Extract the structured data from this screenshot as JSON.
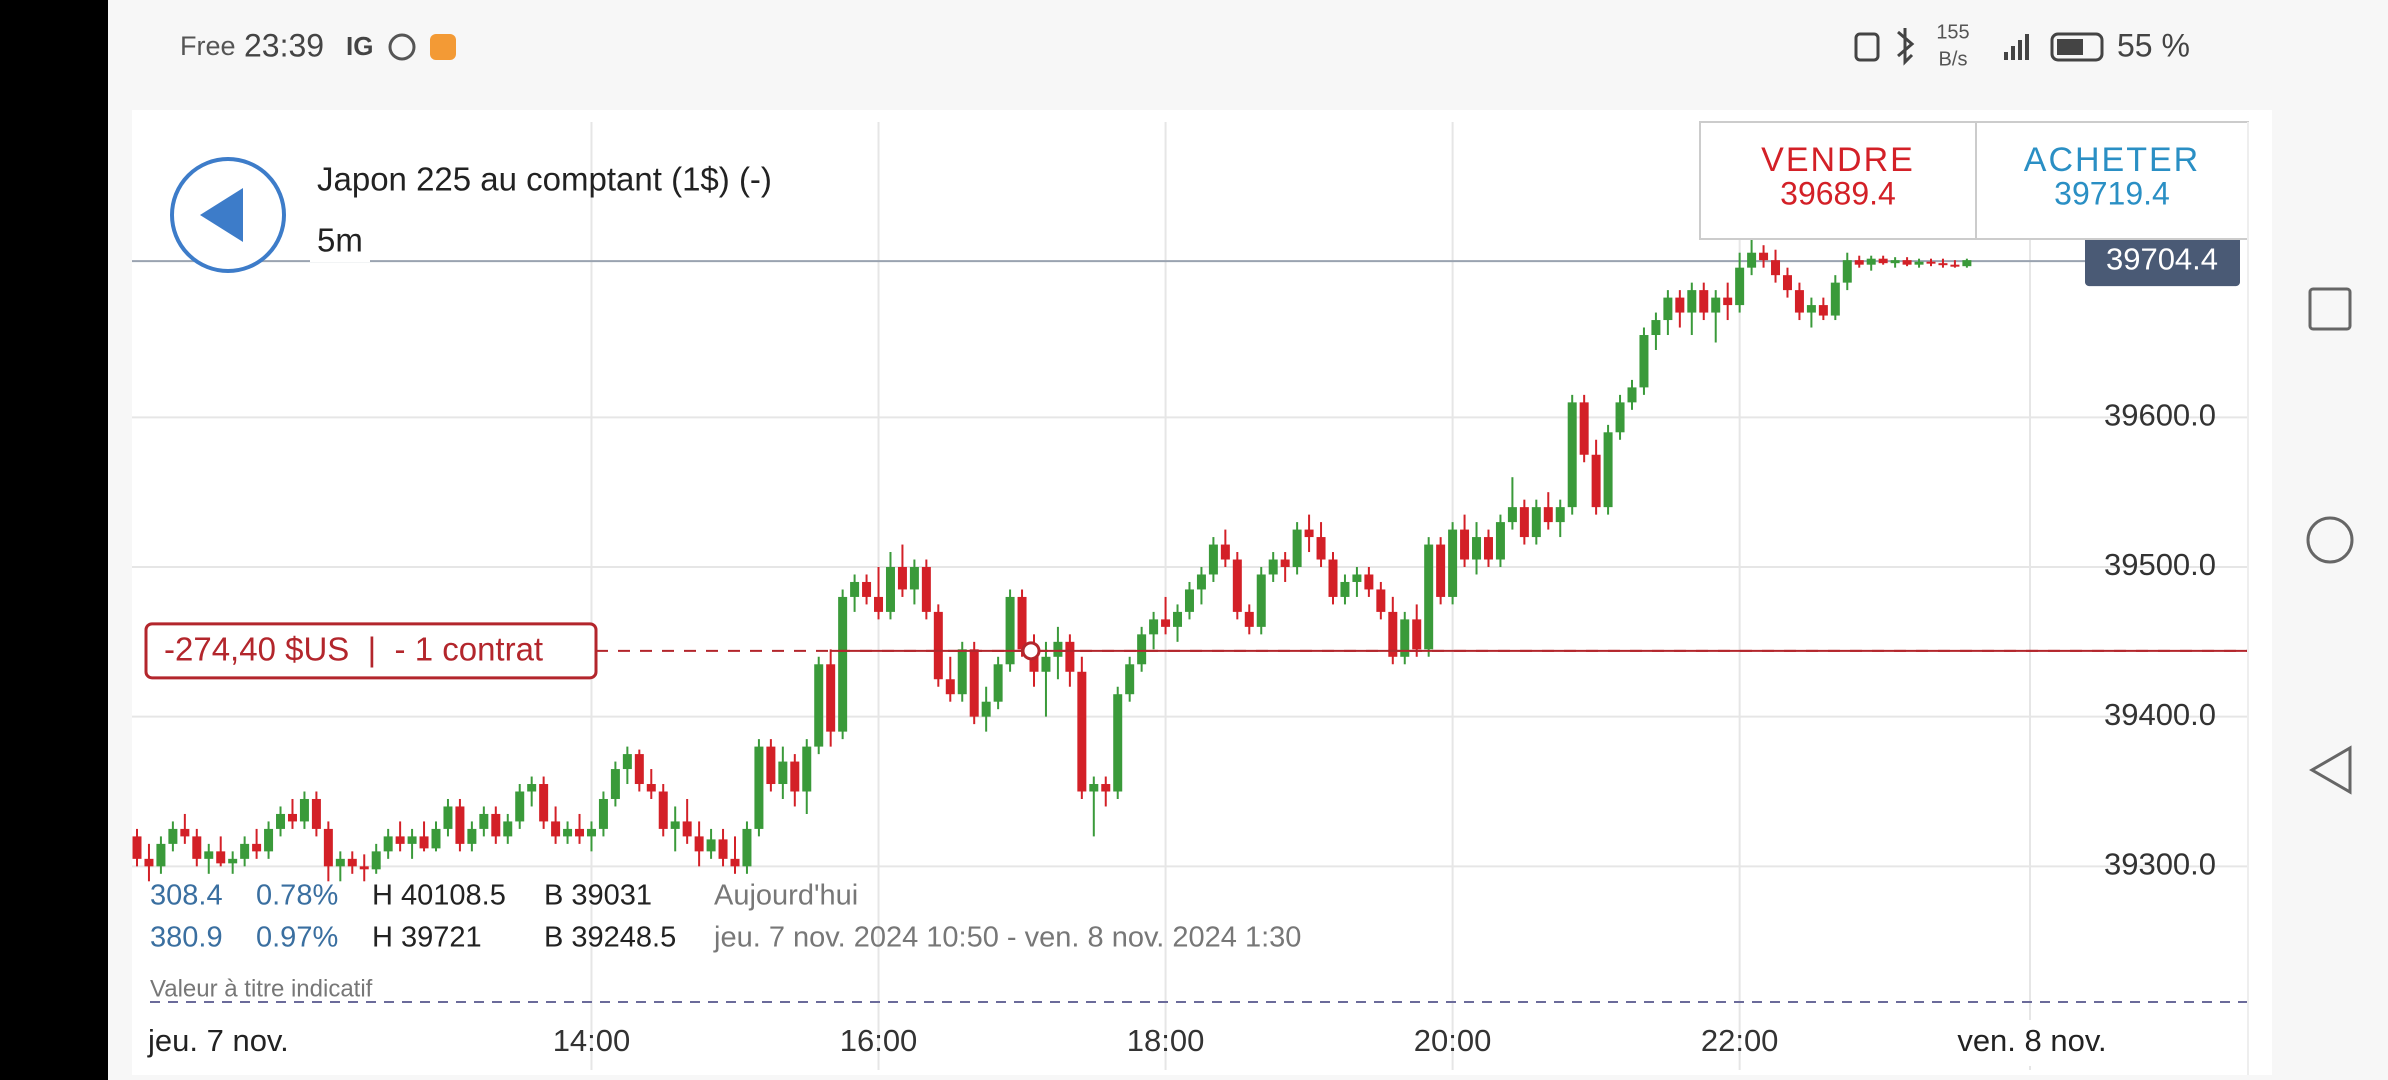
{
  "status_bar": {
    "carrier": "Free",
    "time": "23:39",
    "app": "IG",
    "speed": "155",
    "speed_unit": "B/s",
    "battery": "55 %"
  },
  "header": {
    "title": "Japon 225 au comptant (1$) (-)",
    "interval": "5m"
  },
  "quotes": {
    "sell_label": "VENDRE",
    "sell": 39689.4,
    "buy_label": "ACHETER",
    "buy": 39719.4
  },
  "position": {
    "label": "-274,40 $US  |  - 1 contrat"
  },
  "info": {
    "rows": [
      [
        "308.4",
        "0.78%",
        "H 40108.5",
        "B 39031",
        "Aujourd'hui"
      ],
      [
        "380.9",
        "0.97%",
        "H 39721",
        "B 39248.5",
        "jeu. 7 nov. 2024 10:50 - ven. 8 nov. 2024 1:30"
      ]
    ],
    "note": "Valeur à titre indicatif"
  },
  "chart_data": {
    "type": "candlestick",
    "up_color": "#3a9a3a",
    "down_color": "#d32027",
    "ylim": [
      39200,
      39800
    ],
    "yticks": [
      {
        "value": 39300,
        "label": "39300.0"
      },
      {
        "value": 39400,
        "label": "39400.0"
      },
      {
        "value": 39500,
        "label": "39500.0"
      },
      {
        "value": 39600,
        "label": "39600.0"
      }
    ],
    "xticks": [
      {
        "value": 38,
        "label": "14:00"
      },
      {
        "value": 62,
        "label": "16:00"
      },
      {
        "value": 86,
        "label": "18:00"
      },
      {
        "value": 110,
        "label": "20:00"
      },
      {
        "value": 134,
        "label": "22:00"
      }
    ],
    "start_label": "jeu. 7 nov.",
    "end_label": "ven. 8 nov.",
    "current_price": 39704.4,
    "position_price": 39444,
    "candles": [
      [
        39320,
        39325,
        39300,
        39305
      ],
      [
        39305,
        39315,
        39290,
        39300
      ],
      [
        39300,
        39320,
        39295,
        39315
      ],
      [
        39315,
        39330,
        39310,
        39325
      ],
      [
        39325,
        39335,
        39315,
        39320
      ],
      [
        39320,
        39325,
        39300,
        39305
      ],
      [
        39305,
        39315,
        39295,
        39310
      ],
      [
        39310,
        39320,
        39300,
        39302
      ],
      [
        39302,
        39310,
        39295,
        39305
      ],
      [
        39305,
        39320,
        39300,
        39315
      ],
      [
        39315,
        39325,
        39305,
        39310
      ],
      [
        39310,
        39330,
        39305,
        39325
      ],
      [
        39325,
        39340,
        39320,
        39335
      ],
      [
        39335,
        39345,
        39325,
        39330
      ],
      [
        39330,
        39350,
        39325,
        39345
      ],
      [
        39345,
        39350,
        39320,
        39325
      ],
      [
        39325,
        39330,
        39290,
        39300
      ],
      [
        39300,
        39310,
        39290,
        39305
      ],
      [
        39305,
        39310,
        39295,
        39300
      ],
      [
        39300,
        39308,
        39290,
        39298
      ],
      [
        39298,
        39315,
        39295,
        39310
      ],
      [
        39310,
        39325,
        39305,
        39320
      ],
      [
        39320,
        39330,
        39310,
        39315
      ],
      [
        39315,
        39325,
        39305,
        39320
      ],
      [
        39320,
        39330,
        39310,
        39312
      ],
      [
        39312,
        39330,
        39310,
        39325
      ],
      [
        39325,
        39345,
        39320,
        39340
      ],
      [
        39340,
        39345,
        39310,
        39315
      ],
      [
        39315,
        39330,
        39310,
        39325
      ],
      [
        39325,
        39340,
        39320,
        39335
      ],
      [
        39335,
        39340,
        39315,
        39320
      ],
      [
        39320,
        39335,
        39315,
        39330
      ],
      [
        39330,
        39355,
        39325,
        39350
      ],
      [
        39350,
        39360,
        39340,
        39355
      ],
      [
        39355,
        39360,
        39325,
        39330
      ],
      [
        39330,
        39340,
        39315,
        39320
      ],
      [
        39320,
        39330,
        39315,
        39325
      ],
      [
        39325,
        39335,
        39315,
        39320
      ],
      [
        39320,
        39330,
        39310,
        39325
      ],
      [
        39325,
        39350,
        39320,
        39345
      ],
      [
        39345,
        39370,
        39340,
        39365
      ],
      [
        39365,
        39380,
        39355,
        39375
      ],
      [
        39375,
        39378,
        39350,
        39355
      ],
      [
        39355,
        39365,
        39345,
        39350
      ],
      [
        39350,
        39355,
        39320,
        39325
      ],
      [
        39325,
        39340,
        39310,
        39330
      ],
      [
        39330,
        39345,
        39315,
        39320
      ],
      [
        39320,
        39330,
        39300,
        39310
      ],
      [
        39310,
        39325,
        39305,
        39318
      ],
      [
        39318,
        39325,
        39300,
        39305
      ],
      [
        39305,
        39320,
        39295,
        39300
      ],
      [
        39300,
        39330,
        39295,
        39325
      ],
      [
        39325,
        39385,
        39320,
        39380
      ],
      [
        39380,
        39385,
        39350,
        39355
      ],
      [
        39355,
        39380,
        39345,
        39370
      ],
      [
        39370,
        39375,
        39340,
        39350
      ],
      [
        39350,
        39385,
        39335,
        39380
      ],
      [
        39380,
        39440,
        39375,
        39435
      ],
      [
        39435,
        39445,
        39380,
        39390
      ],
      [
        39390,
        39485,
        39385,
        39480
      ],
      [
        39480,
        39495,
        39470,
        39490
      ],
      [
        39490,
        39495,
        39475,
        39480
      ],
      [
        39480,
        39500,
        39465,
        39470
      ],
      [
        39470,
        39510,
        39465,
        39500
      ],
      [
        39500,
        39515,
        39480,
        39485
      ],
      [
        39485,
        39505,
        39475,
        39500
      ],
      [
        39500,
        39505,
        39465,
        39470
      ],
      [
        39470,
        39475,
        39420,
        39425
      ],
      [
        39425,
        39440,
        39410,
        39415
      ],
      [
        39415,
        39450,
        39410,
        39445
      ],
      [
        39445,
        39450,
        39395,
        39400
      ],
      [
        39400,
        39420,
        39390,
        39410
      ],
      [
        39410,
        39440,
        39405,
        39435
      ],
      [
        39435,
        39485,
        39430,
        39480
      ],
      [
        39480,
        39485,
        39440,
        39445
      ],
      [
        39445,
        39455,
        39420,
        39430
      ],
      [
        39430,
        39450,
        39400,
        39440
      ],
      [
        39440,
        39460,
        39425,
        39450
      ],
      [
        39450,
        39455,
        39420,
        39430
      ],
      [
        39430,
        39440,
        39345,
        39350
      ],
      [
        39350,
        39360,
        39320,
        39355
      ],
      [
        39355,
        39360,
        39340,
        39350
      ],
      [
        39350,
        39420,
        39345,
        39415
      ],
      [
        39415,
        39440,
        39410,
        39435
      ],
      [
        39435,
        39460,
        39430,
        39455
      ],
      [
        39455,
        39470,
        39445,
        39465
      ],
      [
        39465,
        39480,
        39455,
        39460
      ],
      [
        39460,
        39475,
        39450,
        39470
      ],
      [
        39470,
        39490,
        39465,
        39485
      ],
      [
        39485,
        39500,
        39475,
        39495
      ],
      [
        39495,
        39520,
        39490,
        39515
      ],
      [
        39515,
        39525,
        39500,
        39505
      ],
      [
        39505,
        39510,
        39465,
        39470
      ],
      [
        39470,
        39475,
        39455,
        39460
      ],
      [
        39460,
        39500,
        39455,
        39495
      ],
      [
        39495,
        39510,
        39490,
        39505
      ],
      [
        39505,
        39510,
        39490,
        39500
      ],
      [
        39500,
        39530,
        39495,
        39525
      ],
      [
        39525,
        39535,
        39510,
        39520
      ],
      [
        39520,
        39530,
        39500,
        39505
      ],
      [
        39505,
        39510,
        39475,
        39480
      ],
      [
        39480,
        39495,
        39475,
        39490
      ],
      [
        39490,
        39500,
        39480,
        39495
      ],
      [
        39495,
        39500,
        39480,
        39485
      ],
      [
        39485,
        39490,
        39465,
        39470
      ],
      [
        39470,
        39480,
        39435,
        39440
      ],
      [
        39440,
        39470,
        39435,
        39465
      ],
      [
        39465,
        39475,
        39440,
        39445
      ],
      [
        39445,
        39520,
        39440,
        39515
      ],
      [
        39515,
        39520,
        39475,
        39480
      ],
      [
        39480,
        39530,
        39475,
        39525
      ],
      [
        39525,
        39535,
        39500,
        39505
      ],
      [
        39505,
        39530,
        39495,
        39520
      ],
      [
        39520,
        39525,
        39500,
        39505
      ],
      [
        39505,
        39535,
        39500,
        39530
      ],
      [
        39530,
        39560,
        39525,
        39540
      ],
      [
        39540,
        39545,
        39515,
        39520
      ],
      [
        39520,
        39545,
        39515,
        39540
      ],
      [
        39540,
        39550,
        39525,
        39530
      ],
      [
        39530,
        39545,
        39520,
        39540
      ],
      [
        39540,
        39615,
        39535,
        39610
      ],
      [
        39610,
        39615,
        39570,
        39575
      ],
      [
        39575,
        39585,
        39535,
        39540
      ],
      [
        39540,
        39595,
        39535,
        39590
      ],
      [
        39590,
        39615,
        39585,
        39610
      ],
      [
        39610,
        39625,
        39605,
        39620
      ],
      [
        39620,
        39660,
        39615,
        39655
      ],
      [
        39655,
        39670,
        39645,
        39665
      ],
      [
        39665,
        39685,
        39655,
        39680
      ],
      [
        39680,
        39685,
        39660,
        39670
      ],
      [
        39670,
        39690,
        39655,
        39685
      ],
      [
        39685,
        39690,
        39665,
        39670
      ],
      [
        39670,
        39685,
        39650,
        39680
      ],
      [
        39680,
        39690,
        39665,
        39675
      ],
      [
        39675,
        39710,
        39670,
        39700
      ],
      [
        39700,
        39720,
        39695,
        39710
      ],
      [
        39710,
        39715,
        39700,
        39705
      ],
      [
        39705,
        39712,
        39690,
        39695
      ],
      [
        39695,
        39700,
        39680,
        39685
      ],
      [
        39685,
        39690,
        39665,
        39670
      ],
      [
        39670,
        39680,
        39660,
        39675
      ],
      [
        39675,
        39680,
        39665,
        39668
      ],
      [
        39668,
        39695,
        39665,
        39690
      ],
      [
        39690,
        39710,
        39685,
        39705
      ],
      [
        39705,
        39708,
        39700,
        39702
      ],
      [
        39702,
        39708,
        39698,
        39706
      ],
      [
        39706,
        39708,
        39702,
        39703
      ],
      [
        39703,
        39707,
        39700,
        39705
      ],
      [
        39705,
        39707,
        39701,
        39702
      ],
      [
        39702,
        39706,
        39700,
        39704
      ],
      [
        39704,
        39706,
        39701,
        39703
      ],
      [
        39703,
        39706,
        39700,
        39702
      ],
      [
        39702,
        39705,
        39700,
        39701
      ],
      [
        39701,
        39706,
        39700,
        39705
      ]
    ]
  }
}
